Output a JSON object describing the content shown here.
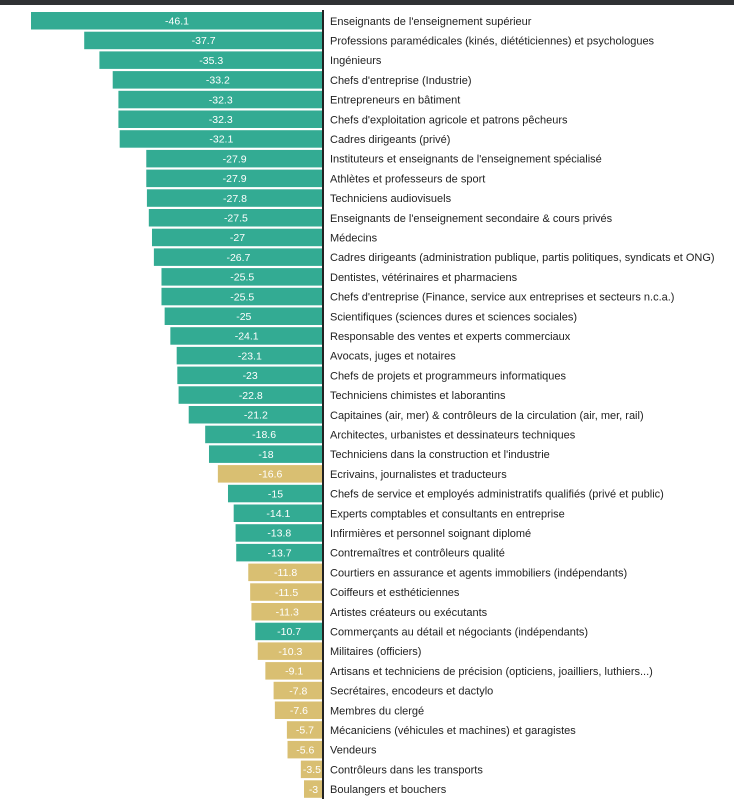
{
  "chart_data": {
    "type": "bar",
    "orientation": "horizontal",
    "direction": "negative-values-extend-left",
    "colors": {
      "teal": "#33ab93",
      "gold": "#d9bf72",
      "axis": "#222222"
    },
    "categories": [
      "Enseignants de l'enseignement supérieur",
      "Professions paramédicales (kinés, diététiciennes) et psychologues",
      "Ingénieurs",
      "Chefs d'entreprise (Industrie)",
      "Entrepreneurs en bâtiment",
      "Chefs d'exploitation agricole et patrons pêcheurs",
      "Cadres dirigeants (privé)",
      "Instituteurs et enseignants de l'enseignement spécialisé",
      "Athlètes et professeurs de sport",
      "Techniciens audiovisuels",
      "Enseignants de l'enseignement secondaire & cours privés",
      "Médecins",
      "Cadres dirigeants (administration publique, partis politiques, syndicats et ONG)",
      "Dentistes, vétérinaires et pharmaciens",
      "Chefs d'entreprise (Finance, service aux entreprises et secteurs n.c.a.)",
      "Scientifiques (sciences dures et sciences sociales)",
      "Responsable des ventes et experts commerciaux",
      "Avocats, juges et notaires",
      "Chefs de projets et programmeurs informatiques",
      "Techniciens chimistes et laborantins",
      "Capitaines (air, mer) & contrôleurs de la circulation (air, mer, rail)",
      "Architectes, urbanistes et dessinateurs techniques",
      "Techniciens dans la construction et l'industrie",
      "Ecrivains, journalistes et traducteurs",
      "Chefs de service et employés administratifs qualifiés (privé et public)",
      "Experts comptables et consultants en entreprise",
      "Infirmières et personnel soignant diplomé",
      "Contremaîtres et contrôleurs qualité",
      "Courtiers en assurance et agents immobiliers (indépendants)",
      "Coiffeurs et esthéticiennes",
      "Artistes créateurs ou exécutants",
      "Commerçants au détail et négociants (indépendants)",
      "Militaires (officiers)",
      "Artisans et techniciens de précision (opticiens, joailliers, luthiers...)",
      "Secrétaires, encodeurs et dactylo",
      "Membres du clergé",
      "Mécaniciens (véhicules et machines) et garagistes",
      "Vendeurs",
      "Contrôleurs dans les transports",
      "Boulangers et bouchers"
    ],
    "values": [
      -46.1,
      -37.7,
      -35.3,
      -33.2,
      -32.3,
      -32.3,
      -32.1,
      -27.9,
      -27.9,
      -27.8,
      -27.5,
      -27,
      -26.7,
      -25.5,
      -25.5,
      -25,
      -24.1,
      -23.1,
      -23,
      -22.8,
      -21.2,
      -18.6,
      -18,
      -16.6,
      -15,
      -14.1,
      -13.8,
      -13.7,
      -11.8,
      -11.5,
      -11.3,
      -10.7,
      -10.3,
      -9.1,
      -7.8,
      -7.6,
      -5.7,
      -5.6,
      -3.5,
      -3
    ],
    "value_labels": [
      "-46.1",
      "-37.7",
      "-35.3",
      "-33.2",
      "-32.3",
      "-32.3",
      "-32.1",
      "-27.9",
      "-27.9",
      "-27.8",
      "-27.5",
      "-27",
      "-26.7",
      "-25.5",
      "-25.5",
      "-25",
      "-24.1",
      "-23.1",
      "-23",
      "-22.8",
      "-21.2",
      "-18.6",
      "-18",
      "-16.6",
      "-15",
      "-14.1",
      "-13.8",
      "-13.7",
      "-11.8",
      "-11.5",
      "-11.3",
      "-10.7",
      "-10.3",
      "-9.1",
      "-7.8",
      "-7.6",
      "-5.7",
      "-5.6",
      "-3.5",
      "-3"
    ],
    "bar_colors": [
      "teal",
      "teal",
      "teal",
      "teal",
      "teal",
      "teal",
      "teal",
      "teal",
      "teal",
      "teal",
      "teal",
      "teal",
      "teal",
      "teal",
      "teal",
      "teal",
      "teal",
      "teal",
      "teal",
      "teal",
      "teal",
      "teal",
      "teal",
      "gold",
      "teal",
      "teal",
      "teal",
      "teal",
      "gold",
      "gold",
      "gold",
      "teal",
      "gold",
      "gold",
      "gold",
      "gold",
      "gold",
      "gold",
      "gold",
      "gold"
    ],
    "xlim": [
      -48,
      0
    ],
    "grid": false,
    "legend": false
  }
}
